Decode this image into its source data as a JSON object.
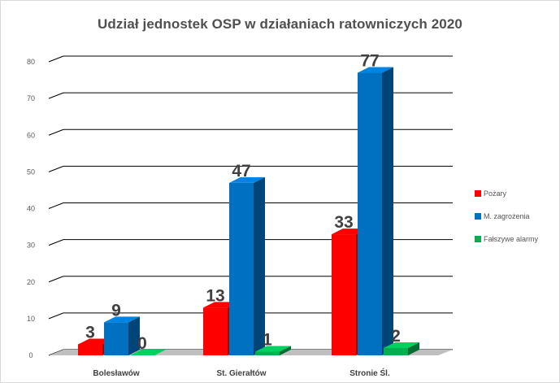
{
  "chart_data": {
    "type": "bar",
    "title": "Udział jednostek OSP w działaniach ratowniczych 2020",
    "categories": [
      "Bolesławów",
      "St. Gierałtów",
      "Stronie Śl."
    ],
    "series": [
      {
        "name": "Pożary",
        "color": "#ff0000",
        "values": [
          3,
          13,
          33
        ]
      },
      {
        "name": "M. zagrożenia",
        "color": "#0070c0",
        "values": [
          9,
          47,
          77
        ]
      },
      {
        "name": "Fałszywe alarmy",
        "color": "#00b050",
        "values": [
          0,
          1,
          2
        ]
      }
    ],
    "yticks": [
      0,
      10,
      20,
      30,
      40,
      50,
      60,
      70,
      80
    ],
    "ylim": [
      0,
      80
    ],
    "xlabel": "",
    "ylabel": "",
    "grid": true,
    "legend": "right",
    "three_d": true,
    "data_labels": true
  }
}
